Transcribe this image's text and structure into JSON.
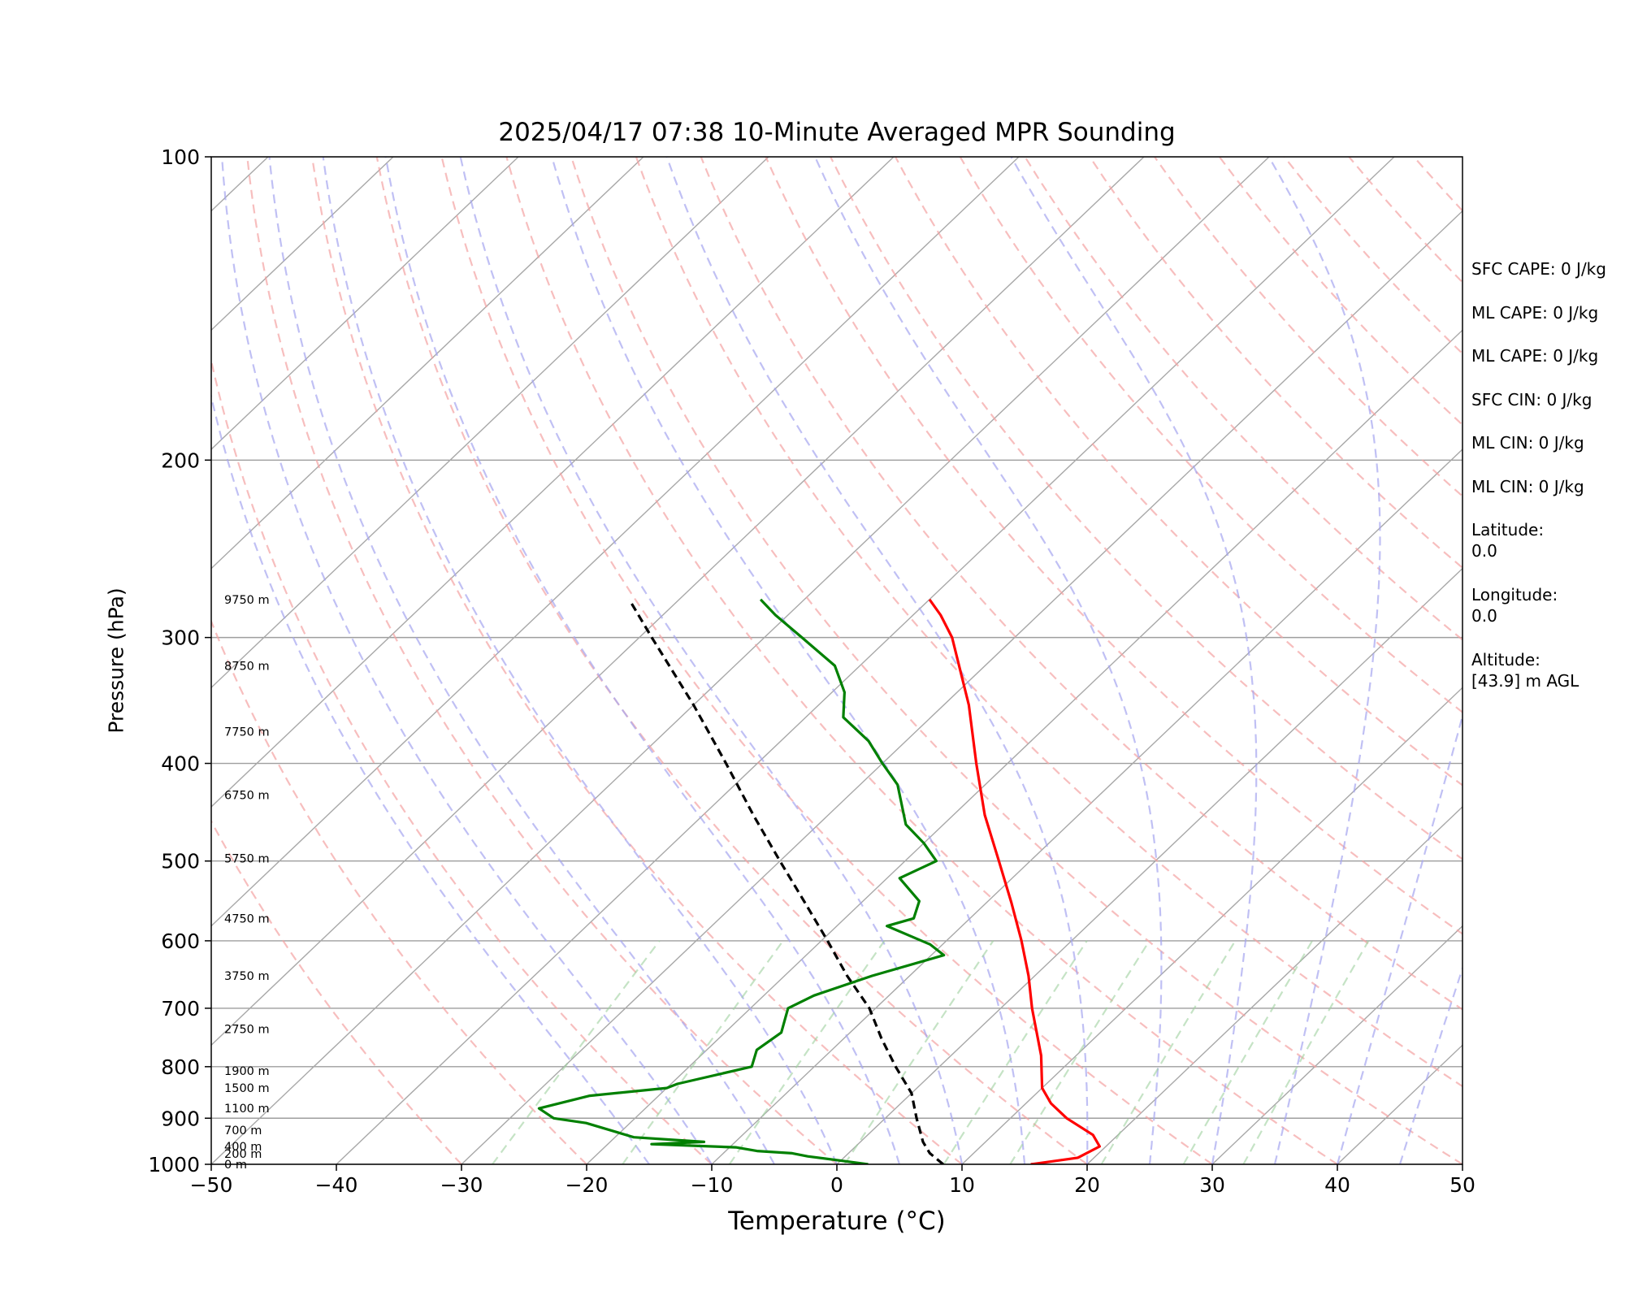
{
  "chart_data": {
    "type": "line",
    "title": "2025/04/17 07:38 10-Minute Averaged MPR Sounding",
    "xlabel": "Temperature (°C)",
    "ylabel": "Pressure (hPa)",
    "xlim": [
      -50,
      50
    ],
    "ylim": [
      1000,
      100
    ],
    "y_scale": "log",
    "x_ticks": [
      "−50",
      "−40",
      "−30",
      "−20",
      "−10",
      "0",
      "10",
      "20",
      "30",
      "40",
      "50"
    ],
    "y_ticks": [
      {
        "p": 100,
        "label": "100"
      },
      {
        "p": 200,
        "label": "200"
      },
      {
        "p": 300,
        "label": "300"
      },
      {
        "p": 400,
        "label": "400"
      },
      {
        "p": 500,
        "label": "500"
      },
      {
        "p": 600,
        "label": "600"
      },
      {
        "p": 700,
        "label": "700"
      },
      {
        "p": 800,
        "label": "800"
      },
      {
        "p": 900,
        "label": "900"
      },
      {
        "p": 1000,
        "label": "1000"
      }
    ],
    "grid": true,
    "height_labels": [
      {
        "p": 1000,
        "label": "0 m"
      },
      {
        "p": 976,
        "label": "200 m"
      },
      {
        "p": 960,
        "label": "400 m"
      },
      {
        "p": 925,
        "label": "700 m"
      },
      {
        "p": 880,
        "label": "1100 m"
      },
      {
        "p": 840,
        "label": "1500 m"
      },
      {
        "p": 808,
        "label": "1900 m"
      },
      {
        "p": 734,
        "label": "2750 m"
      },
      {
        "p": 650,
        "label": "3750 m"
      },
      {
        "p": 570,
        "label": "4750 m"
      },
      {
        "p": 497,
        "label": "5750 m"
      },
      {
        "p": 430,
        "label": "6750 m"
      },
      {
        "p": 372,
        "label": "7750 m"
      },
      {
        "p": 320,
        "label": "8750 m"
      },
      {
        "p": 275,
        "label": "9750 m"
      }
    ],
    "series": [
      {
        "color": "#ff0000",
        "points": [
          [
            1000,
            15.5
          ],
          [
            985,
            18.7
          ],
          [
            960,
            19.5
          ],
          [
            935,
            18.0
          ],
          [
            900,
            14.5
          ],
          [
            870,
            12.0
          ],
          [
            840,
            10.0
          ],
          [
            780,
            7.2
          ],
          [
            700,
            2.5
          ],
          [
            650,
            -0.5
          ],
          [
            600,
            -4.0
          ],
          [
            550,
            -8.0
          ],
          [
            500,
            -12.5
          ],
          [
            450,
            -17.5
          ],
          [
            400,
            -22.5
          ],
          [
            350,
            -28.0
          ],
          [
            300,
            -35.0
          ],
          [
            285,
            -37.8
          ],
          [
            275,
            -40.0
          ]
        ]
      },
      {
        "color": "#008000",
        "points": [
          [
            1000,
            2.5
          ],
          [
            990,
            -0.5
          ],
          [
            982,
            -3.0
          ],
          [
            975,
            -4.5
          ],
          [
            970,
            -7.5
          ],
          [
            962,
            -9.5
          ],
          [
            955,
            -16.5
          ],
          [
            950,
            -12.5
          ],
          [
            940,
            -18.5
          ],
          [
            910,
            -23.5
          ],
          [
            900,
            -26.5
          ],
          [
            880,
            -28.5
          ],
          [
            855,
            -25.5
          ],
          [
            840,
            -20.0
          ],
          [
            832,
            -19.5
          ],
          [
            800,
            -15.0
          ],
          [
            770,
            -16.0
          ],
          [
            740,
            -15.5
          ],
          [
            700,
            -17.0
          ],
          [
            680,
            -16.0
          ],
          [
            650,
            -13.0
          ],
          [
            620,
            -9.0
          ],
          [
            605,
            -11.0
          ],
          [
            580,
            -16.0
          ],
          [
            570,
            -14.5
          ],
          [
            548,
            -15.5
          ],
          [
            520,
            -19.0
          ],
          [
            500,
            -17.5
          ],
          [
            480,
            -20.0
          ],
          [
            460,
            -23.0
          ],
          [
            420,
            -27.0
          ],
          [
            400,
            -30.0
          ],
          [
            380,
            -33.0
          ],
          [
            360,
            -37.0
          ],
          [
            340,
            -39.0
          ],
          [
            320,
            -42.0
          ],
          [
            300,
            -47.0
          ],
          [
            285,
            -51.0
          ],
          [
            275,
            -53.5
          ]
        ]
      },
      {
        "color": "#000000",
        "dashed": true,
        "points": [
          [
            1000,
            8.5
          ],
          [
            975,
            6.5
          ],
          [
            950,
            5.0
          ],
          [
            900,
            2.5
          ],
          [
            850,
            0.0
          ],
          [
            800,
            -3.5
          ],
          [
            750,
            -7.0
          ],
          [
            700,
            -10.5
          ],
          [
            650,
            -15.0
          ],
          [
            600,
            -19.5
          ],
          [
            550,
            -24.5
          ],
          [
            500,
            -30.0
          ],
          [
            450,
            -36.0
          ],
          [
            400,
            -42.5
          ],
          [
            350,
            -50.0
          ],
          [
            300,
            -59.0
          ],
          [
            275,
            -64.0
          ]
        ]
      }
    ]
  },
  "info": {
    "lines": [
      "SFC CAPE: 0 J/kg",
      "ML CAPE: 0 J/kg",
      "ML CAPE: 0 J/kg",
      "SFC CIN: 0 J/kg",
      "ML CIN: 0 J/kg",
      "ML CIN: 0 J/kg"
    ],
    "latitude_label": "Latitude:",
    "latitude_value": "0.0",
    "longitude_label": "Longitude:",
    "longitude_value": "0.0",
    "altitude_label": "Altitude:",
    "altitude_value": "[43.9] m AGL"
  }
}
